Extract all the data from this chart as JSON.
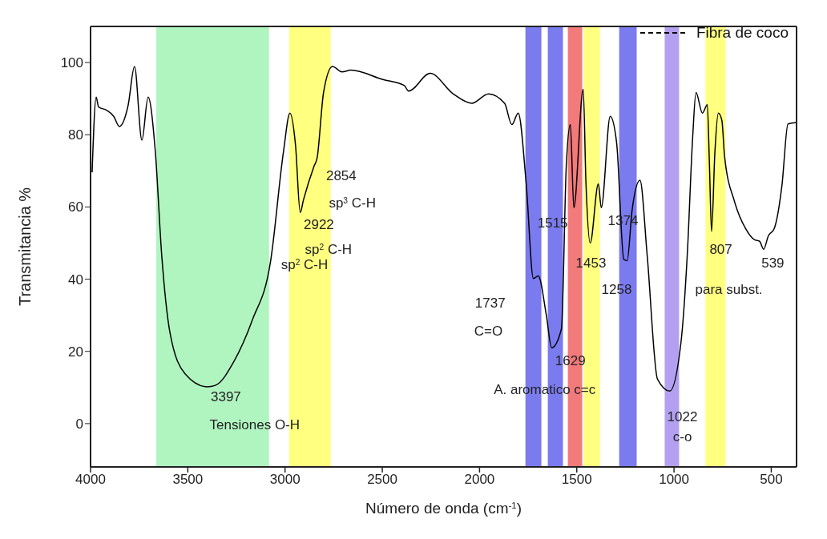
{
  "chart_data": {
    "type": "line",
    "xlabel": "Número de onda (cm$^{-1}$)",
    "ylabel": "Transmitancia %",
    "xlim": [
      4000,
      370
    ],
    "xticks": [
      4000,
      3500,
      3000,
      2500,
      2000,
      1500,
      1000,
      500
    ],
    "ylim": [
      -12,
      110
    ],
    "yticks": [
      0,
      20,
      40,
      60,
      80,
      100
    ],
    "legend": "top right",
    "marker": "none",
    "line_style": "solid",
    "series": [
      {
        "name": "Fibra de coco",
        "color": "#000000",
        "x": [
          3992,
          3971,
          3959,
          3918,
          3881,
          3852,
          3807,
          3774,
          3736,
          3704,
          3667,
          3634,
          3592,
          3514,
          3400,
          3358,
          3263,
          3168,
          3074,
          3008,
          2975,
          2946,
          2922,
          2905,
          2851,
          2835,
          2802,
          2756,
          2707,
          2662,
          2497,
          2386,
          2365,
          2254,
          2135,
          2040,
          1954,
          1871,
          1834,
          1801,
          1760,
          1723,
          1698,
          1657,
          1629,
          1579,
          1554,
          1533,
          1515,
          1467,
          1453,
          1431,
          1389,
          1374,
          1328,
          1295,
          1258,
          1241,
          1216,
          1175,
          1138,
          1085,
          1022,
          965,
          932,
          904,
          887,
          854,
          829,
          818,
          807,
          790,
          772,
          754,
          740,
          689,
          632,
          586,
          560,
          539,
          515,
          485,
          445,
          414,
          372
        ],
        "values": [
          69.6,
          90.4,
          87.7,
          86.8,
          85.1,
          82.3,
          88.1,
          98.9,
          78.5,
          90.4,
          75.3,
          46.6,
          25.3,
          13.8,
          10.2,
          10.6,
          17.2,
          28.7,
          45.1,
          75.3,
          86.0,
          77.0,
          58.5,
          62.0,
          71.3,
          73.6,
          91.7,
          98.9,
          97.4,
          97.9,
          95.3,
          93.6,
          92.1,
          97.0,
          91.3,
          88.7,
          91.3,
          88.7,
          82.8,
          86.0,
          66.4,
          40.2,
          40.9,
          30.2,
          21.0,
          26.2,
          71.3,
          82.8,
          59.8,
          92.6,
          67.0,
          50.0,
          66.4,
          59.8,
          85.1,
          77.7,
          45.5,
          45.1,
          58.9,
          67.4,
          46.6,
          12.3,
          9.0,
          22.1,
          46.6,
          79.4,
          91.7,
          86.0,
          88.3,
          72.0,
          53.2,
          75.0,
          86.0,
          84.0,
          74.0,
          61.5,
          54.0,
          50.9,
          50.5,
          48.3,
          52.0,
          54.0,
          66.0,
          83.0,
          83.4
        ]
      }
    ],
    "bands": [
      {
        "axis": "x",
        "from": 3662,
        "to": 3082,
        "color": "#b0f5c0"
      },
      {
        "axis": "x",
        "from": 2979,
        "to": 2765,
        "color": "#ffff80"
      },
      {
        "axis": "x",
        "from": 1764,
        "to": 1682,
        "color": "#7b7bf0"
      },
      {
        "axis": "x",
        "from": 1649,
        "to": 1571,
        "color": "#7b7bf0"
      },
      {
        "axis": "x",
        "from": 1546,
        "to": 1472,
        "color": "#f27a7a"
      },
      {
        "axis": "x",
        "from": 1464,
        "to": 1381,
        "color": "#ffff80"
      },
      {
        "axis": "x",
        "from": 1282,
        "to": 1192,
        "color": "#7b7bf0"
      },
      {
        "axis": "x",
        "from": 1048,
        "to": 974,
        "color": "#b4a0f0"
      },
      {
        "axis": "x",
        "from": 838,
        "to": 735,
        "color": "#ffff80"
      }
    ],
    "annotations": [
      "3397",
      "Tensiones O-H",
      "2854",
      "sp$^{3}$ C-H",
      "2922",
      "sp$^{2}$ C-H",
      "sp$^{2}$ C-H",
      "1737",
      "C=O",
      "1629",
      "A. aromatico c=c",
      "1515",
      "1374",
      "1453",
      "1258",
      "807",
      "539",
      "para subst.",
      "1022",
      "c-o"
    ]
  }
}
